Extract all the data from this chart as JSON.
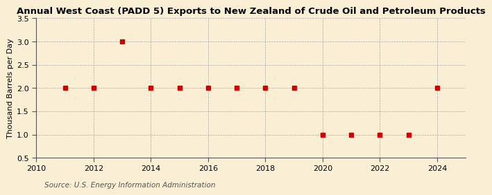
{
  "title": "Annual West Coast (PADD 5) Exports to New Zealand of Crude Oil and Petroleum Products",
  "ylabel": "Thousand Barrels per Day",
  "source": "Source: U.S. Energy Information Administration",
  "background_color": "#faefd4",
  "years": [
    2011,
    2012,
    2013,
    2014,
    2015,
    2016,
    2017,
    2018,
    2019,
    2020,
    2021,
    2022,
    2023,
    2024
  ],
  "values": [
    2,
    2,
    3,
    2,
    2,
    2,
    2,
    2,
    2,
    1,
    1,
    1,
    1,
    2
  ],
  "marker_color": "#cc0000",
  "marker_size": 4,
  "xlim": [
    2010,
    2025
  ],
  "ylim": [
    0.5,
    3.5
  ],
  "xticks": [
    2010,
    2012,
    2014,
    2016,
    2018,
    2020,
    2022,
    2024
  ],
  "yticks": [
    0.5,
    1.0,
    1.5,
    2.0,
    2.5,
    3.0,
    3.5
  ],
  "title_fontsize": 9.5,
  "axis_fontsize": 8,
  "source_fontsize": 7.5
}
